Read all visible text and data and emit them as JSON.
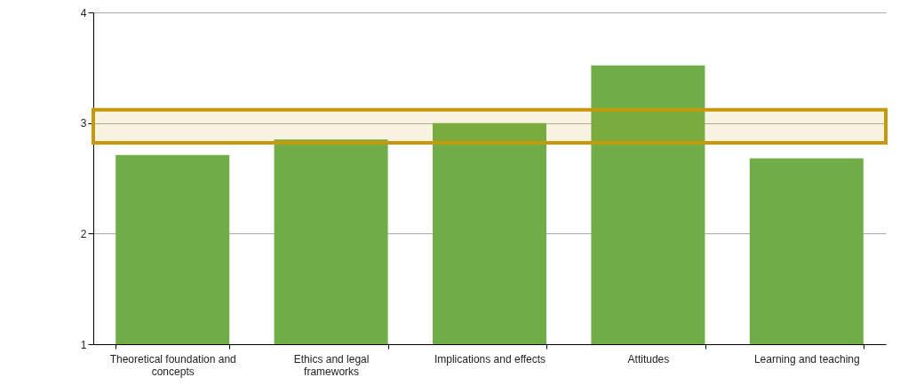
{
  "chart_data": {
    "type": "bar",
    "categories": [
      "Theoretical foundation and concepts",
      "Ethics and legal frameworks",
      "Implications and effects",
      "Attitudes",
      "Learning and teaching"
    ],
    "values": [
      2.71,
      2.85,
      3.0,
      3.52,
      2.68
    ],
    "color": "#70ad47",
    "ylim": [
      1,
      4
    ],
    "yticks": [
      1,
      2,
      3,
      4
    ],
    "grid": "y",
    "bands": [
      {
        "axis": "y",
        "from": 2.82,
        "to": 3.12,
        "color": "#c49a0c"
      }
    ]
  }
}
